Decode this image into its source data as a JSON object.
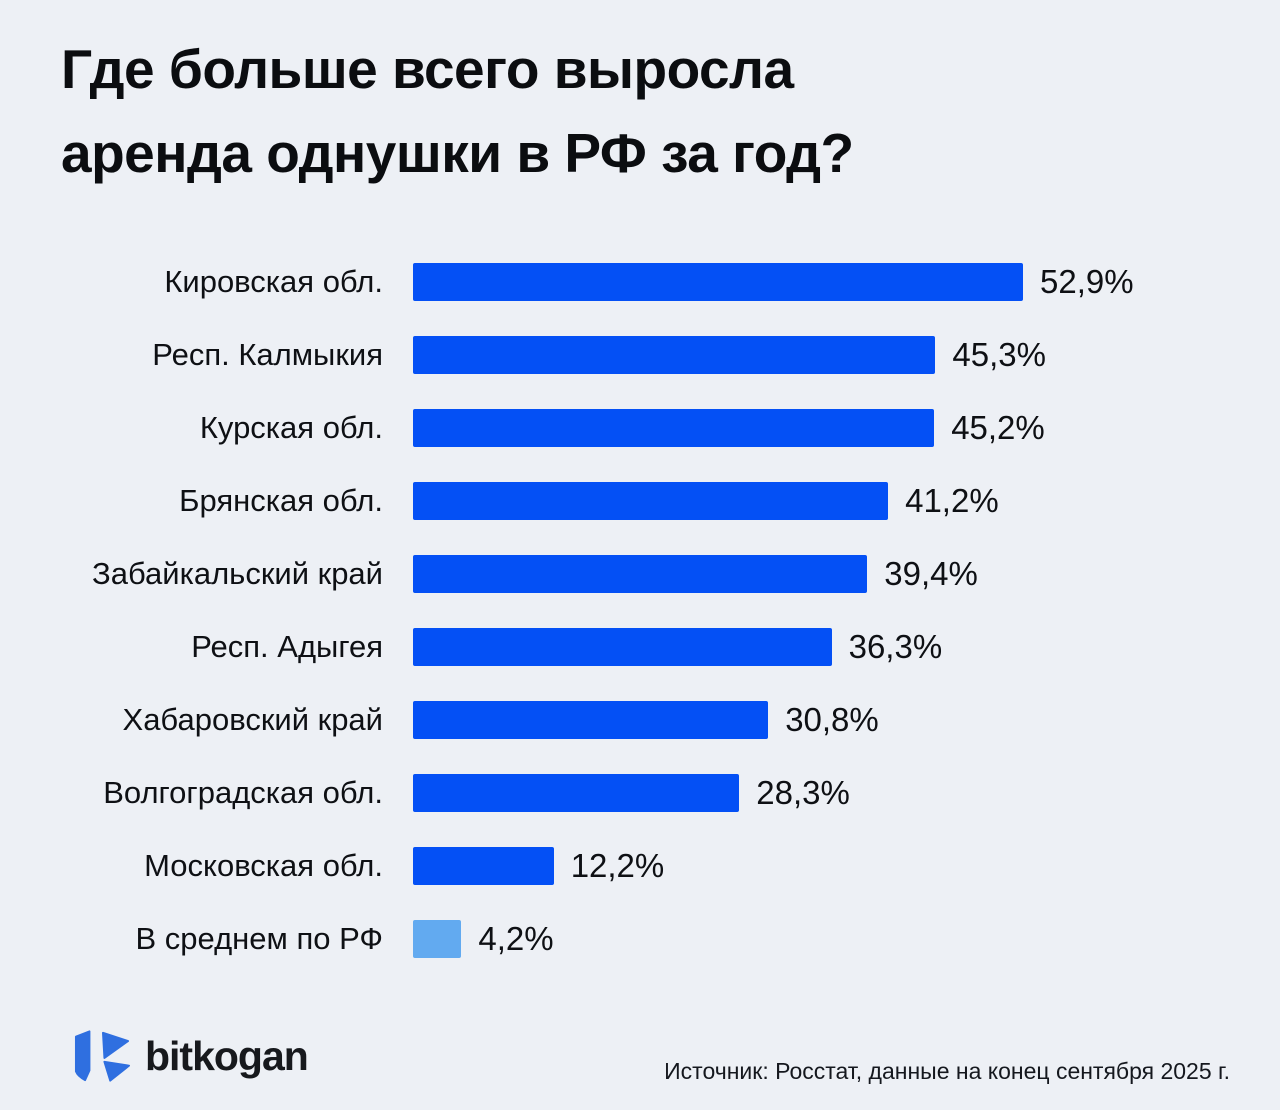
{
  "title": {
    "line1": "Где больше всего выросла",
    "line2": "аренда однушки в РФ за год?"
  },
  "chart_data": {
    "type": "bar",
    "orientation": "horizontal",
    "categories": [
      "Кировская обл.",
      "Респ. Калмыкия",
      "Курская обл.",
      "Брянская обл.",
      "Забайкальский край",
      "Респ. Адыгея",
      "Хабаровский край",
      "Волгоградская обл.",
      "Московская обл.",
      "В среднем по РФ"
    ],
    "values": [
      52.9,
      45.3,
      45.2,
      41.2,
      39.4,
      36.3,
      30.8,
      28.3,
      12.2,
      4.2
    ],
    "value_labels": [
      "52,9%",
      "45,3%",
      "45,2%",
      "41,2%",
      "39,4%",
      "36,3%",
      "30,8%",
      "28,3%",
      "12,2%",
      "4,2%"
    ],
    "unit": "%",
    "xlim": [
      0,
      52.9
    ],
    "grid": false,
    "legend": false,
    "bar_color": "#0450f5",
    "highlight_color": "#62aaf0",
    "highlight_index": 9,
    "title": "Где больше всего выросла аренда однушки в РФ за год?"
  },
  "footer": {
    "brand": "bitkogan",
    "source": "Источник: Росстат, данные на конец сентября 2025 г."
  },
  "colors": {
    "background": "#edf0f5",
    "bar": "#0450f5",
    "bar_highlight": "#62aaf0",
    "text": "#0c0e11",
    "logo_blue": "#2f6fe0"
  }
}
